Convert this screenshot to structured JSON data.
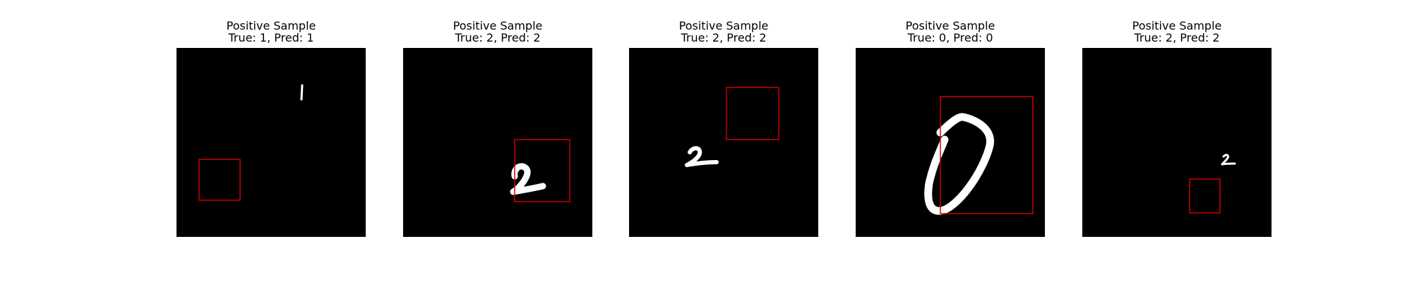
{
  "panels": [
    {
      "title": "Positive Sample\nTrue: 1, Pred: 1",
      "digit": "1",
      "true_label": 1,
      "pred_label": 1
    },
    {
      "title": "Positive Sample\nTrue: 2, Pred: 2",
      "digit": "2",
      "true_label": 2,
      "pred_label": 2
    },
    {
      "title": "Positive Sample\nTrue: 2, Pred: 2",
      "digit": "2",
      "true_label": 2,
      "pred_label": 2
    },
    {
      "title": "Positive Sample\nTrue: 0, Pred: 0",
      "digit": "0",
      "true_label": 0,
      "pred_label": 0
    },
    {
      "title": "Positive Sample\nTrue: 2, Pred: 2",
      "digit": "2",
      "true_label": 2,
      "pred_label": 2
    }
  ],
  "colors": {
    "image_background": "#000000",
    "digit": "#ffffff",
    "box": "#cc0000"
  }
}
